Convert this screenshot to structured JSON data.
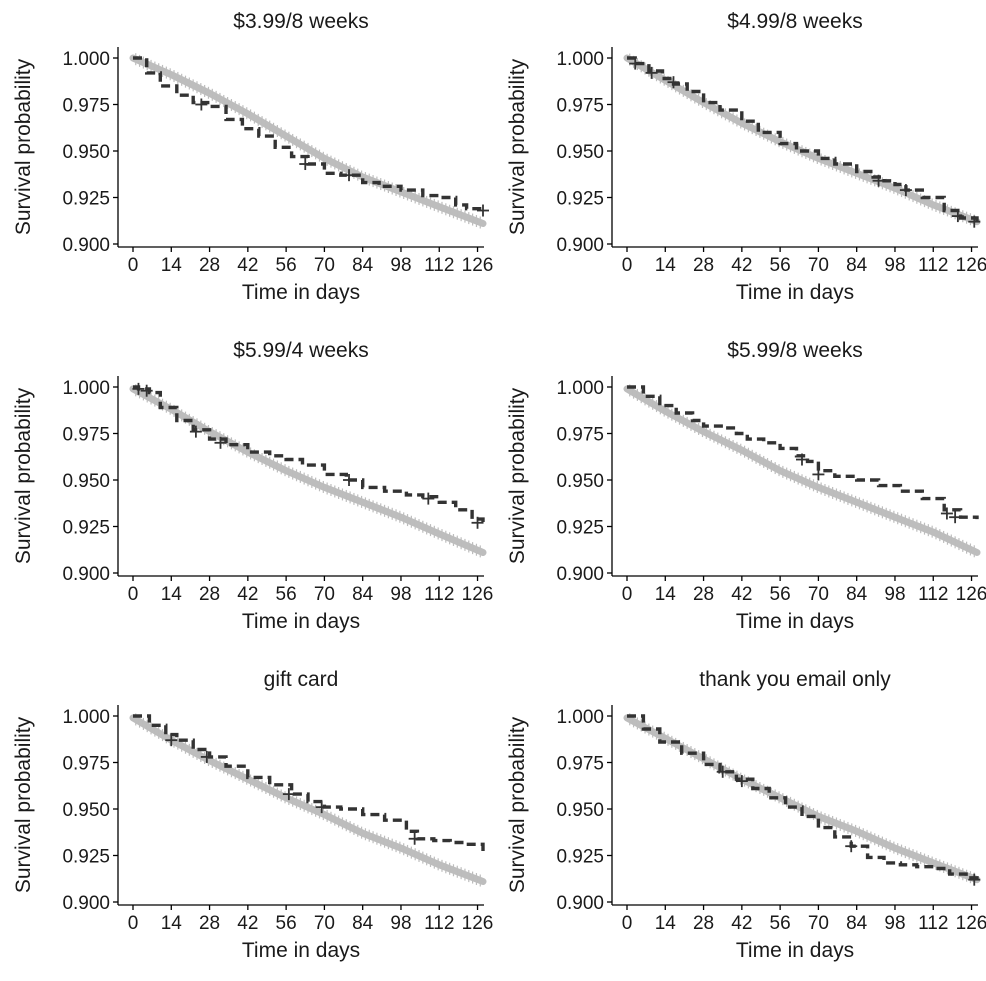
{
  "chart_data": [
    {
      "type": "line",
      "title": "$3.99/8 weeks",
      "xlabel": "Time in days",
      "ylabel": "Survival probability",
      "xlim": [
        0,
        128
      ],
      "ylim": [
        0.9,
        1.0
      ],
      "x_ticks": [
        "0",
        "14",
        "28",
        "42",
        "56",
        "70",
        "84",
        "98",
        "112",
        "126"
      ],
      "y_ticks": [
        "0.900",
        "0.925",
        "0.950",
        "0.975",
        "1.000"
      ],
      "grid": false,
      "series": [
        {
          "role": "reference",
          "color": "#bdbdbd",
          "x": [
            0,
            14,
            28,
            42,
            56,
            70,
            84,
            98,
            112,
            128
          ],
          "y": [
            1.0,
            0.991,
            0.981,
            0.97,
            0.958,
            0.946,
            0.936,
            0.928,
            0.92,
            0.911
          ]
        },
        {
          "role": "treatment",
          "color": "#333333",
          "x": [
            0,
            5,
            10,
            16,
            22,
            28,
            34,
            40,
            46,
            52,
            58,
            64,
            70,
            76,
            80,
            84,
            90,
            98,
            106,
            112,
            118,
            122,
            128
          ],
          "y": [
            1.0,
            0.992,
            0.985,
            0.98,
            0.976,
            0.974,
            0.967,
            0.962,
            0.958,
            0.952,
            0.947,
            0.943,
            0.938,
            0.937,
            0.937,
            0.933,
            0.931,
            0.929,
            0.926,
            0.925,
            0.921,
            0.919,
            0.918
          ]
        }
      ],
      "censor_marks": [
        {
          "x": 25,
          "y": 0.975
        },
        {
          "x": 63,
          "y": 0.943
        },
        {
          "x": 79,
          "y": 0.937
        },
        {
          "x": 128,
          "y": 0.918
        }
      ]
    },
    {
      "type": "line",
      "title": "$4.99/8 weeks",
      "xlabel": "Time in days",
      "ylabel": "Survival probability",
      "xlim": [
        0,
        128
      ],
      "ylim": [
        0.9,
        1.0
      ],
      "x_ticks": [
        "0",
        "14",
        "28",
        "42",
        "56",
        "70",
        "84",
        "98",
        "112",
        "126"
      ],
      "y_ticks": [
        "0.900",
        "0.925",
        "0.950",
        "0.975",
        "1.000"
      ],
      "grid": false,
      "series": [
        {
          "role": "reference",
          "color": "#bdbdbd",
          "x": [
            0,
            14,
            28,
            42,
            56,
            70,
            84,
            98,
            112,
            128
          ],
          "y": [
            1.0,
            0.988,
            0.976,
            0.965,
            0.955,
            0.946,
            0.938,
            0.93,
            0.921,
            0.912
          ]
        },
        {
          "role": "treatment",
          "color": "#333333",
          "x": [
            0,
            3,
            8,
            13,
            17,
            22,
            28,
            34,
            42,
            48,
            56,
            62,
            70,
            76,
            84,
            90,
            94,
            98,
            102,
            108,
            116,
            122,
            128
          ],
          "y": [
            1.0,
            0.997,
            0.993,
            0.989,
            0.986,
            0.982,
            0.976,
            0.972,
            0.966,
            0.96,
            0.954,
            0.95,
            0.946,
            0.943,
            0.939,
            0.936,
            0.934,
            0.932,
            0.929,
            0.925,
            0.918,
            0.914,
            0.912
          ]
        }
      ],
      "censor_marks": [
        {
          "x": 3,
          "y": 0.997
        },
        {
          "x": 9,
          "y": 0.992
        },
        {
          "x": 17,
          "y": 0.987
        },
        {
          "x": 92,
          "y": 0.934
        },
        {
          "x": 102,
          "y": 0.929
        },
        {
          "x": 121,
          "y": 0.915
        },
        {
          "x": 127,
          "y": 0.912
        }
      ]
    },
    {
      "type": "line",
      "title": "$5.99/4 weeks",
      "xlabel": "Time in days",
      "ylabel": "Survival probability",
      "xlim": [
        0,
        128
      ],
      "ylim": [
        0.9,
        1.0
      ],
      "x_ticks": [
        "0",
        "14",
        "28",
        "42",
        "56",
        "70",
        "84",
        "98",
        "112",
        "126"
      ],
      "y_ticks": [
        "0.900",
        "0.925",
        "0.950",
        "0.975",
        "1.000"
      ],
      "grid": false,
      "series": [
        {
          "role": "reference",
          "color": "#bdbdbd",
          "x": [
            0,
            14,
            28,
            42,
            56,
            70,
            84,
            98,
            112,
            128
          ],
          "y": [
            0.999,
            0.988,
            0.976,
            0.965,
            0.955,
            0.946,
            0.938,
            0.93,
            0.921,
            0.911
          ]
        },
        {
          "role": "treatment",
          "color": "#333333",
          "x": [
            0,
            2,
            6,
            10,
            16,
            22,
            28,
            34,
            42,
            50,
            56,
            62,
            70,
            78,
            84,
            92,
            100,
            106,
            112,
            118,
            124,
            128
          ],
          "y": [
            1.0,
            0.999,
            0.997,
            0.989,
            0.982,
            0.977,
            0.972,
            0.969,
            0.965,
            0.963,
            0.961,
            0.958,
            0.953,
            0.95,
            0.946,
            0.944,
            0.942,
            0.941,
            0.938,
            0.934,
            0.929,
            0.927
          ]
        }
      ],
      "censor_marks": [
        {
          "x": 2,
          "y": 0.999
        },
        {
          "x": 5,
          "y": 0.998
        },
        {
          "x": 23,
          "y": 0.976
        },
        {
          "x": 32,
          "y": 0.97
        },
        {
          "x": 79,
          "y": 0.95
        },
        {
          "x": 108,
          "y": 0.94
        },
        {
          "x": 126,
          "y": 0.927
        }
      ]
    },
    {
      "type": "line",
      "title": "$5.99/8 weeks",
      "xlabel": "Time in days",
      "ylabel": "Survival probability",
      "xlim": [
        0,
        128
      ],
      "ylim": [
        0.9,
        1.0
      ],
      "x_ticks": [
        "0",
        "14",
        "28",
        "42",
        "56",
        "70",
        "84",
        "98",
        "112",
        "126"
      ],
      "y_ticks": [
        "0.900",
        "0.925",
        "0.950",
        "0.975",
        "1.000"
      ],
      "grid": false,
      "series": [
        {
          "role": "reference",
          "color": "#bdbdbd",
          "x": [
            0,
            14,
            28,
            42,
            56,
            70,
            84,
            98,
            112,
            128
          ],
          "y": [
            0.999,
            0.987,
            0.976,
            0.966,
            0.955,
            0.946,
            0.938,
            0.93,
            0.922,
            0.911
          ]
        },
        {
          "role": "treatment",
          "color": "#333333",
          "x": [
            0,
            6,
            12,
            18,
            24,
            28,
            36,
            40,
            44,
            50,
            56,
            62,
            66,
            70,
            76,
            84,
            92,
            100,
            108,
            116,
            122,
            128
          ],
          "y": [
            1.0,
            0.995,
            0.99,
            0.986,
            0.982,
            0.979,
            0.978,
            0.975,
            0.972,
            0.97,
            0.967,
            0.963,
            0.96,
            0.955,
            0.952,
            0.95,
            0.947,
            0.944,
            0.94,
            0.934,
            0.93,
            0.929
          ]
        }
      ],
      "censor_marks": [
        {
          "x": 64,
          "y": 0.961
        },
        {
          "x": 70,
          "y": 0.953
        },
        {
          "x": 117,
          "y": 0.932
        },
        {
          "x": 120,
          "y": 0.93
        }
      ]
    },
    {
      "type": "line",
      "title": "gift card",
      "xlabel": "Time in days",
      "ylabel": "Survival probability",
      "xlim": [
        0,
        128
      ],
      "ylim": [
        0.9,
        1.0
      ],
      "x_ticks": [
        "0",
        "14",
        "28",
        "42",
        "56",
        "70",
        "84",
        "98",
        "112",
        "126"
      ],
      "y_ticks": [
        "0.900",
        "0.925",
        "0.950",
        "0.975",
        "1.000"
      ],
      "grid": false,
      "series": [
        {
          "role": "reference",
          "color": "#bdbdbd",
          "x": [
            0,
            14,
            28,
            42,
            56,
            70,
            84,
            98,
            112,
            128
          ],
          "y": [
            0.999,
            0.987,
            0.976,
            0.966,
            0.956,
            0.947,
            0.937,
            0.929,
            0.92,
            0.911
          ]
        },
        {
          "role": "treatment",
          "color": "#333333",
          "x": [
            0,
            6,
            12,
            16,
            22,
            28,
            34,
            42,
            50,
            58,
            64,
            70,
            76,
            84,
            92,
            100,
            104,
            110,
            116,
            122,
            128
          ],
          "y": [
            1.0,
            0.995,
            0.99,
            0.987,
            0.982,
            0.978,
            0.973,
            0.967,
            0.963,
            0.958,
            0.954,
            0.951,
            0.95,
            0.947,
            0.944,
            0.938,
            0.934,
            0.933,
            0.932,
            0.931,
            0.927
          ]
        }
      ],
      "censor_marks": [
        {
          "x": 14,
          "y": 0.987
        },
        {
          "x": 27,
          "y": 0.978
        },
        {
          "x": 57,
          "y": 0.958
        },
        {
          "x": 69,
          "y": 0.951
        },
        {
          "x": 103,
          "y": 0.934
        }
      ]
    },
    {
      "type": "line",
      "title": "thank you email only",
      "xlabel": "Time in days",
      "ylabel": "Survival probability",
      "xlim": [
        0,
        128
      ],
      "ylim": [
        0.9,
        1.0
      ],
      "x_ticks": [
        "0",
        "14",
        "28",
        "42",
        "56",
        "70",
        "84",
        "98",
        "112",
        "126"
      ],
      "y_ticks": [
        "0.900",
        "0.925",
        "0.950",
        "0.975",
        "1.000"
      ],
      "grid": false,
      "series": [
        {
          "role": "reference",
          "color": "#bdbdbd",
          "x": [
            0,
            14,
            28,
            42,
            56,
            70,
            84,
            98,
            112,
            128
          ],
          "y": [
            0.999,
            0.988,
            0.977,
            0.966,
            0.956,
            0.946,
            0.938,
            0.929,
            0.921,
            0.912
          ]
        },
        {
          "role": "treatment",
          "color": "#333333",
          "x": [
            0,
            6,
            12,
            20,
            28,
            34,
            40,
            46,
            52,
            58,
            64,
            70,
            76,
            82,
            88,
            94,
            100,
            106,
            112,
            118,
            124,
            128
          ],
          "y": [
            1.0,
            0.993,
            0.986,
            0.98,
            0.974,
            0.97,
            0.966,
            0.961,
            0.956,
            0.951,
            0.946,
            0.94,
            0.935,
            0.93,
            0.924,
            0.921,
            0.92,
            0.919,
            0.918,
            0.915,
            0.913,
            0.912
          ]
        }
      ],
      "censor_marks": [
        {
          "x": 35,
          "y": 0.97
        },
        {
          "x": 42,
          "y": 0.965
        },
        {
          "x": 82,
          "y": 0.93
        },
        {
          "x": 127,
          "y": 0.912
        }
      ]
    }
  ]
}
